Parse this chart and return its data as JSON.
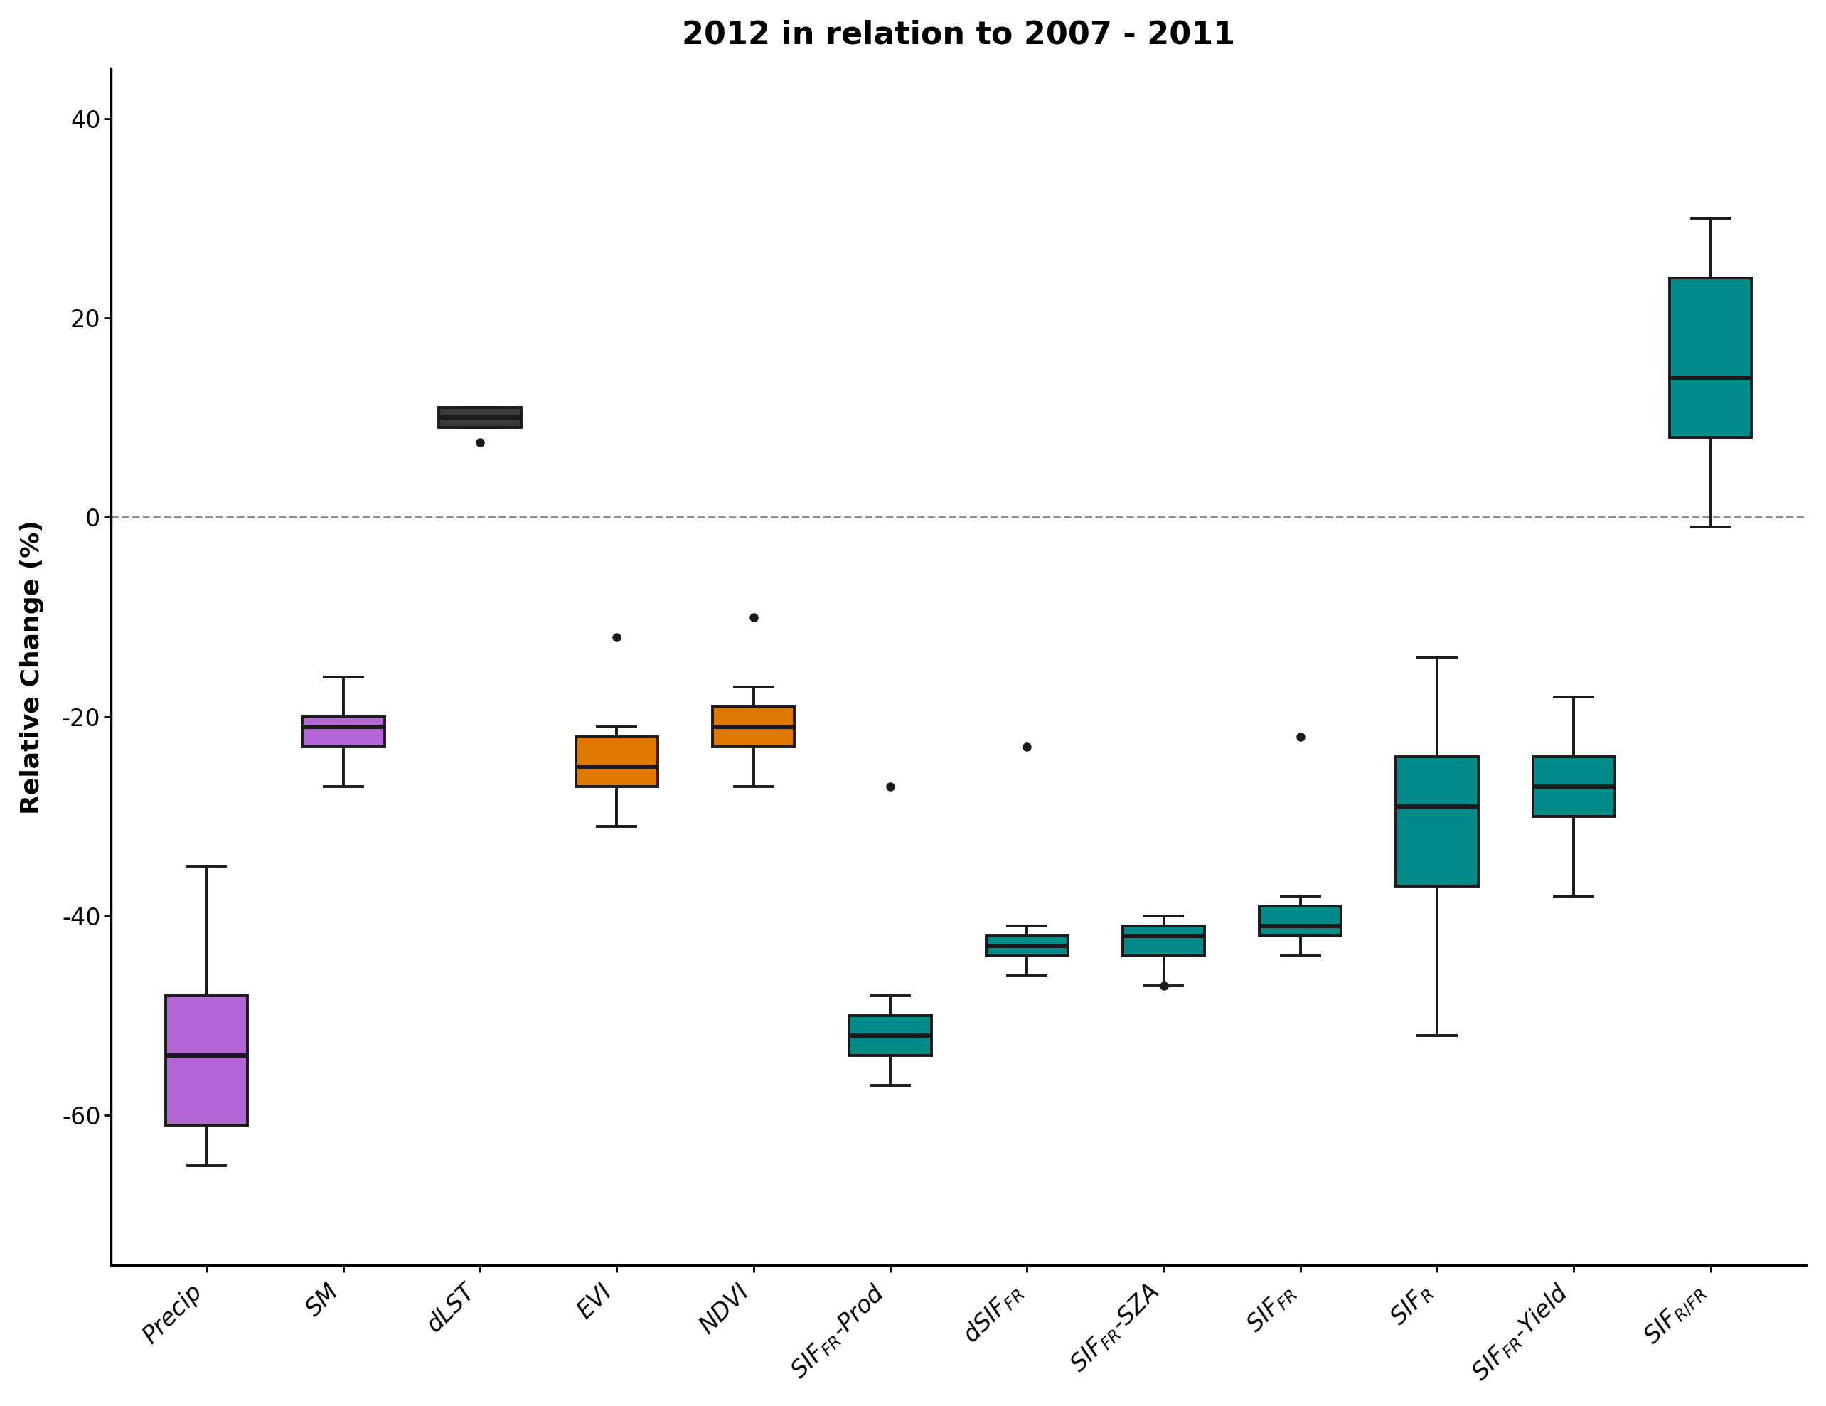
{
  "title": "2012 in relation to 2007 - 2011",
  "ylabel": "Relative Change (%)",
  "ylim": [
    -75,
    45
  ],
  "yticks": [
    -60,
    -40,
    -20,
    0,
    20,
    40
  ],
  "background_color": "#ffffff",
  "title_fontsize": 32,
  "label_fontsize": 26,
  "tick_fontsize": 24,
  "box_data": [
    {
      "label": "Precip",
      "q1": -61,
      "median": -54,
      "q3": -48,
      "whislo": -65,
      "whishi": -35,
      "fliers": [],
      "color": "#b367d6"
    },
    {
      "label": "SM",
      "q1": -23,
      "median": -21,
      "q3": -20,
      "whislo": -27,
      "whishi": -16,
      "fliers": [],
      "color": "#b367d6"
    },
    {
      "label": "dLST",
      "q1": 9,
      "median": 10,
      "q3": 11,
      "whislo": 9,
      "whishi": 11,
      "fliers": [
        7.5
      ],
      "color": "#3a3a3a"
    },
    {
      "label": "EVI",
      "q1": -27,
      "median": -25,
      "q3": -22,
      "whislo": -31,
      "whishi": -21,
      "fliers": [
        -12
      ],
      "color": "#e07800"
    },
    {
      "label": "NDVI",
      "q1": -23,
      "median": -21,
      "q3": -19,
      "whislo": -27,
      "whishi": -17,
      "fliers": [
        -10
      ],
      "color": "#e07800"
    },
    {
      "label": "SIF_FR_Prod",
      "q1": -54,
      "median": -52,
      "q3": -50,
      "whislo": -57,
      "whishi": -48,
      "fliers": [
        -27
      ],
      "color": "#008b8b"
    },
    {
      "label": "dSIF_FR",
      "q1": -44,
      "median": -43,
      "q3": -42,
      "whislo": -46,
      "whishi": -41,
      "fliers": [
        -23
      ],
      "color": "#008b8b"
    },
    {
      "label": "SIF_FR_SZA",
      "q1": -44,
      "median": -42,
      "q3": -41,
      "whislo": -47,
      "whishi": -40,
      "fliers": [
        -47
      ],
      "color": "#008b8b"
    },
    {
      "label": "SIF_FR",
      "q1": -42,
      "median": -41,
      "q3": -39,
      "whislo": -44,
      "whishi": -38,
      "fliers": [
        -22
      ],
      "color": "#008b8b"
    },
    {
      "label": "SIF_R",
      "q1": -37,
      "median": -29,
      "q3": -24,
      "whislo": -52,
      "whishi": -14,
      "fliers": [],
      "color": "#008b8b"
    },
    {
      "label": "SIF_FR_Yield",
      "q1": -30,
      "median": -27,
      "q3": -24,
      "whislo": -38,
      "whishi": -18,
      "fliers": [],
      "color": "#008b8b"
    },
    {
      "label": "SIF_R_FR",
      "q1": 8,
      "median": 14,
      "q3": 24,
      "whislo": -1,
      "whishi": 30,
      "fliers": [],
      "color": "#008b8b"
    }
  ],
  "xlabels": [
    "Precip",
    "SM",
    "dLST",
    "EVI",
    "NDVI",
    "SIF$_{FR}$-Prod",
    "$d$SIF$_{FR}$",
    "SIF$_{FR}$-SZA",
    "SIF$_{FR}$",
    "SIF$_R$",
    "SIF$_{FR}$-Yield",
    "SIF$_{R/FR}$"
  ]
}
